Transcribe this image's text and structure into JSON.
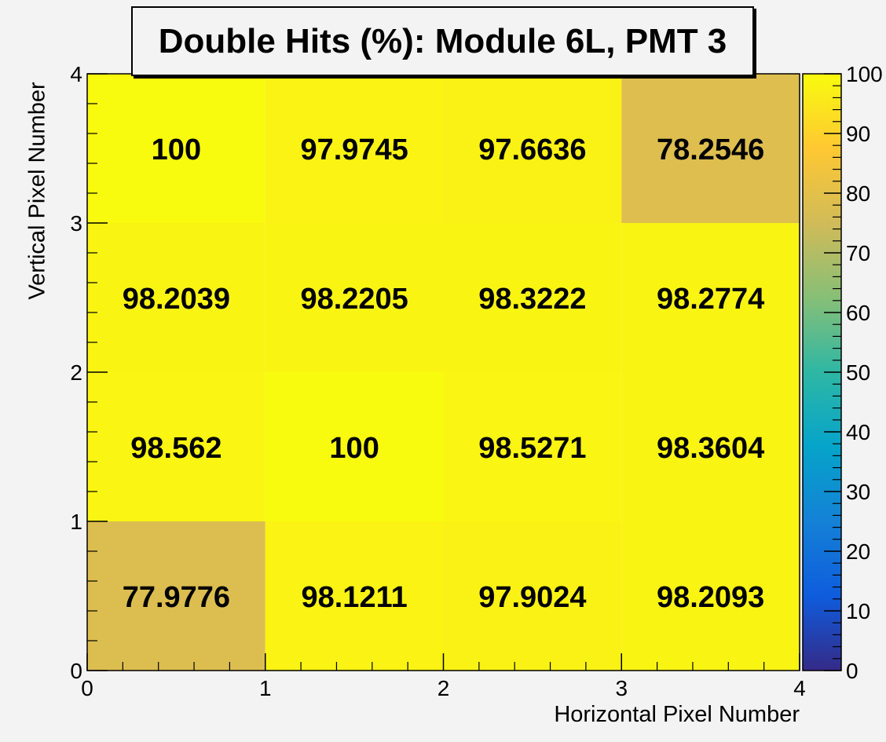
{
  "chart_data": {
    "type": "heatmap",
    "title": "Double Hits (%): Module 6L, PMT 3",
    "xlabel": "Horizontal Pixel Number",
    "ylabel": "Vertical Pixel Number",
    "xlim": [
      0,
      4
    ],
    "ylim": [
      0,
      4
    ],
    "x_ticks": [
      "0",
      "1",
      "2",
      "3",
      "4"
    ],
    "y_ticks": [
      "0",
      "1",
      "2",
      "3",
      "4"
    ],
    "colorbar": {
      "range": [
        0,
        100
      ],
      "ticks": [
        "0",
        "10",
        "20",
        "30",
        "40",
        "50",
        "60",
        "70",
        "80",
        "90",
        "100"
      ],
      "palette": [
        "#352a87",
        "#0f5cdd",
        "#1481d6",
        "#06a4ca",
        "#2eb7a4",
        "#87bf77",
        "#d1bb59",
        "#fec832",
        "#f9fb0e"
      ]
    },
    "rows_top_to_bottom": [
      {
        "y_bin": "3-4",
        "values": [
          100,
          97.9745,
          97.6636,
          78.2546
        ],
        "labels": [
          "100",
          "97.9745",
          "97.6636",
          "78.2546"
        ]
      },
      {
        "y_bin": "2-3",
        "values": [
          98.2039,
          98.2205,
          98.3222,
          98.2774
        ],
        "labels": [
          "98.2039",
          "98.2205",
          "98.3222",
          "98.2774"
        ]
      },
      {
        "y_bin": "1-2",
        "values": [
          98.562,
          100,
          98.5271,
          98.3604
        ],
        "labels": [
          "98.562",
          "100",
          "98.5271",
          "98.3604"
        ]
      },
      {
        "y_bin": "0-1",
        "values": [
          77.9776,
          98.1211,
          97.9024,
          98.2093
        ],
        "labels": [
          "77.9776",
          "98.1211",
          "97.9024",
          "98.2093"
        ]
      }
    ]
  }
}
